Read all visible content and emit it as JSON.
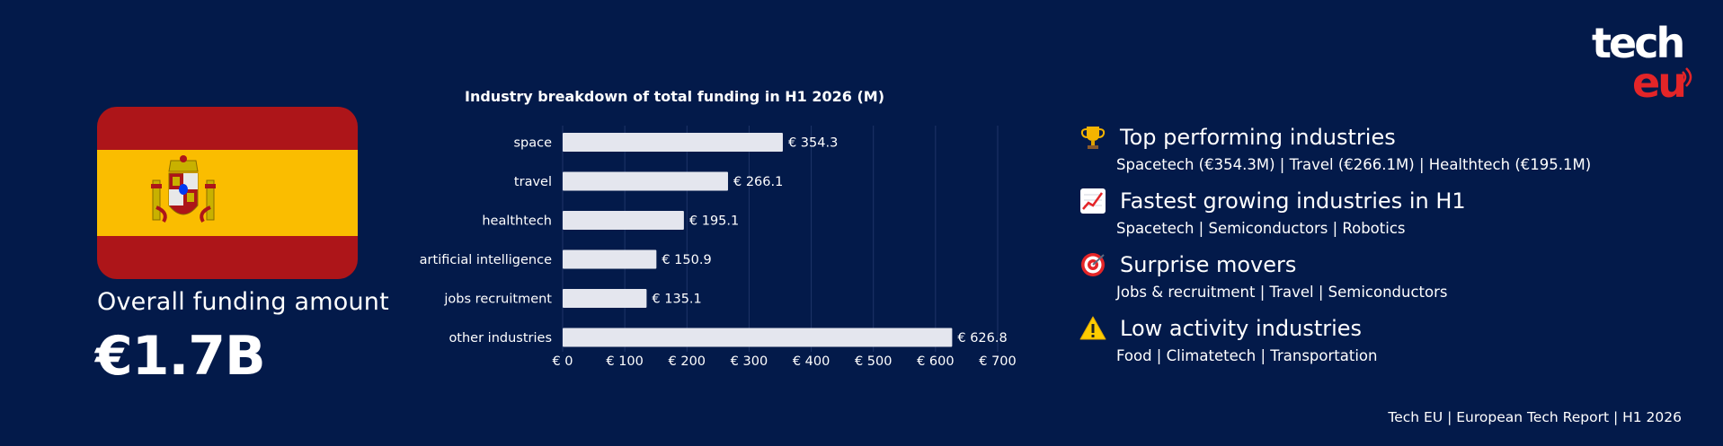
{
  "overview": {
    "funding_label": "Overall funding amount",
    "funding_value": "€1.7B"
  },
  "chart_data": {
    "type": "bar",
    "orientation": "horizontal",
    "title": "Industry breakdown of total funding in H1 2026 (M)",
    "categories": [
      "space",
      "travel",
      "healthtech",
      "artificial intelligence",
      "jobs recruitment",
      "other industries"
    ],
    "values": [
      354.3,
      266.1,
      195.1,
      150.9,
      135.1,
      626.8
    ],
    "value_labels": [
      "€ 354.3",
      "€ 266.1",
      "€ 195.1",
      "€ 150.9",
      "€ 135.1",
      "€ 626.8"
    ],
    "x_ticks": [
      "€ 0",
      "€ 100",
      "€ 200",
      "€ 300",
      "€ 400",
      "€ 500",
      "€ 600",
      "€ 700"
    ],
    "xlim": [
      0,
      700
    ],
    "grid": true,
    "bar_color": "#e4e6ee"
  },
  "insights": [
    {
      "icon": "trophy-icon",
      "title": "Top performing industries",
      "text": "Spacetech (€354.3M) | Travel (€266.1M) | Healthtech (€195.1M)"
    },
    {
      "icon": "chart-increasing-icon",
      "title": "Fastest growing industries in H1",
      "text": "Spacetech | Semiconductors | Robotics"
    },
    {
      "icon": "target-icon",
      "title": "Surprise movers",
      "text": "Jobs & recruitment | Travel | Semiconductors"
    },
    {
      "icon": "warning-icon",
      "title": "Low activity industries",
      "text": "Food | Climatetech | Transportation"
    }
  ],
  "logo": {
    "top": "tech",
    "bottom": "eu"
  },
  "footer": "Tech EU | European Tech Report | H1 2026",
  "colors": {
    "background": "#031a4a",
    "flag_red": "#ad1519",
    "flag_yellow": "#fabd00",
    "logo_red": "#e42528"
  }
}
